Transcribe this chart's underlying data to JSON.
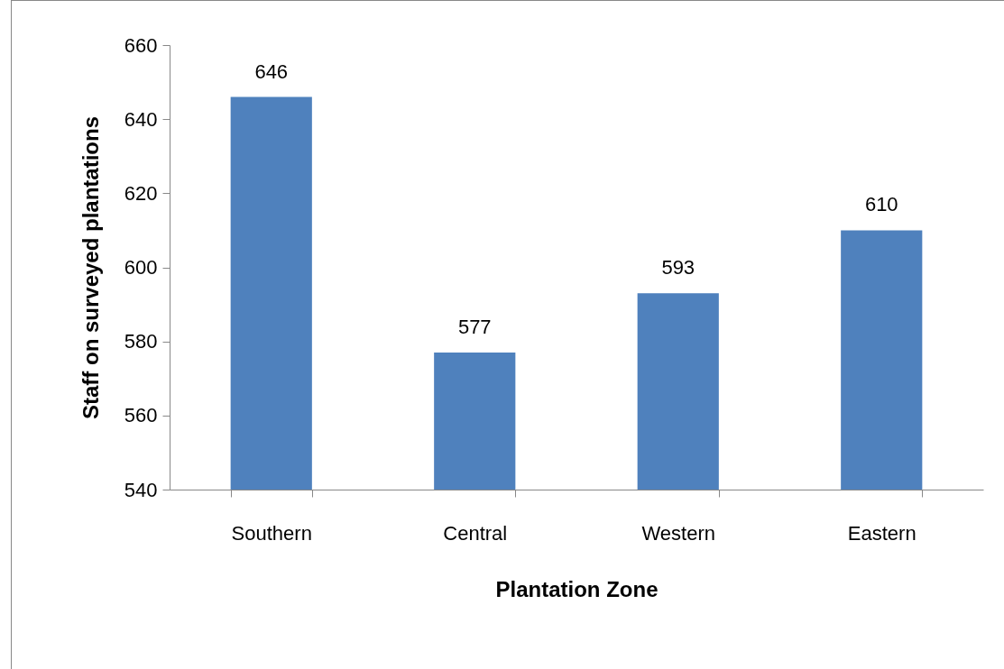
{
  "chart_data": {
    "type": "bar",
    "xlabel": "Plantation Zone",
    "ylabel": "Staff on surveyed plantations",
    "categories": [
      "Southern",
      "Central",
      "Western",
      "Eastern"
    ],
    "values": [
      646,
      577,
      593,
      610
    ],
    "color": "#4f81bd",
    "ylim": [
      540,
      660
    ],
    "yticks": [
      540,
      560,
      580,
      600,
      620,
      640,
      660
    ],
    "grid": false,
    "data_labels": true
  }
}
